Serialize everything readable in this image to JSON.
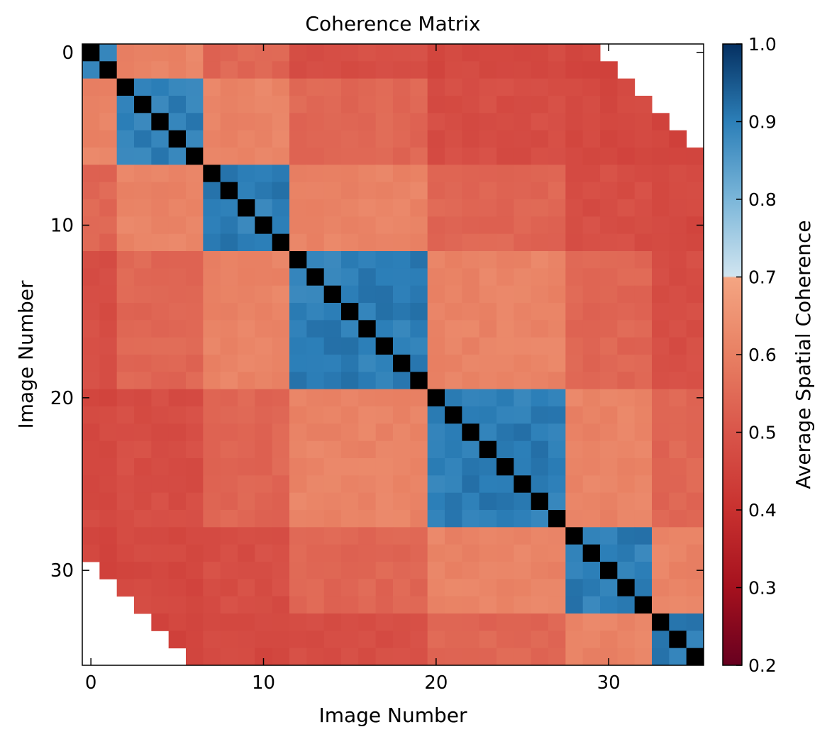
{
  "chart_data": {
    "type": "heatmap",
    "title": "Coherence Matrix",
    "xlabel": "Image Number",
    "ylabel": "Image Number",
    "n": 36,
    "xlim": [
      -0.5,
      35.5
    ],
    "ylim": [
      35.5,
      -0.5
    ],
    "x_ticks": [
      0,
      10,
      20,
      30
    ],
    "y_ticks": [
      0,
      10,
      20,
      30
    ],
    "x_tick_labels": [
      "0",
      "10",
      "20",
      "30"
    ],
    "y_tick_labels": [
      "0",
      "10",
      "20",
      "30"
    ],
    "groups": [
      {
        "start": 0,
        "end": 1
      },
      {
        "start": 2,
        "end": 6
      },
      {
        "start": 7,
        "end": 11
      },
      {
        "start": 12,
        "end": 19
      },
      {
        "start": 20,
        "end": 27
      },
      {
        "start": 28,
        "end": 32
      },
      {
        "start": 33,
        "end": 35
      }
    ],
    "within_group_coherence": 0.9,
    "between_group_coherence": {
      "distance_1": 0.61,
      "distance_2": 0.54,
      "distance_3_or_more": 0.48
    },
    "diagonal_coherence": 1.0,
    "missing_pairs": "cells with |i - j| >= 30 are empty",
    "colorbar": {
      "label": "Average Spatial Coherence",
      "range": [
        0.2,
        1.0
      ],
      "ticks": [
        0.2,
        0.3,
        0.4,
        0.5,
        0.6,
        0.7,
        0.8,
        0.9,
        1.0
      ],
      "tick_labels": [
        "0.2",
        "0.3",
        "0.4",
        "0.5",
        "0.6",
        "0.7",
        "0.8",
        "0.9",
        "1.0"
      ]
    },
    "colormap": {
      "name": "RdBu",
      "stops": [
        {
          "v": 0.2,
          "color": "#67001f"
        },
        {
          "v": 0.3,
          "color": "#a5111e"
        },
        {
          "v": 0.4,
          "color": "#c8312f"
        },
        {
          "v": 0.5,
          "color": "#d9554a"
        },
        {
          "v": 0.6,
          "color": "#e88063"
        },
        {
          "v": 0.699,
          "color": "#f4a582"
        },
        {
          "v": 0.701,
          "color": "#d1e5f0"
        },
        {
          "v": 0.8,
          "color": "#7bb6d9"
        },
        {
          "v": 0.9,
          "color": "#2c7fb8"
        },
        {
          "v": 1.0,
          "color": "#053061"
        }
      ],
      "diagonal_color": "#000000"
    }
  }
}
